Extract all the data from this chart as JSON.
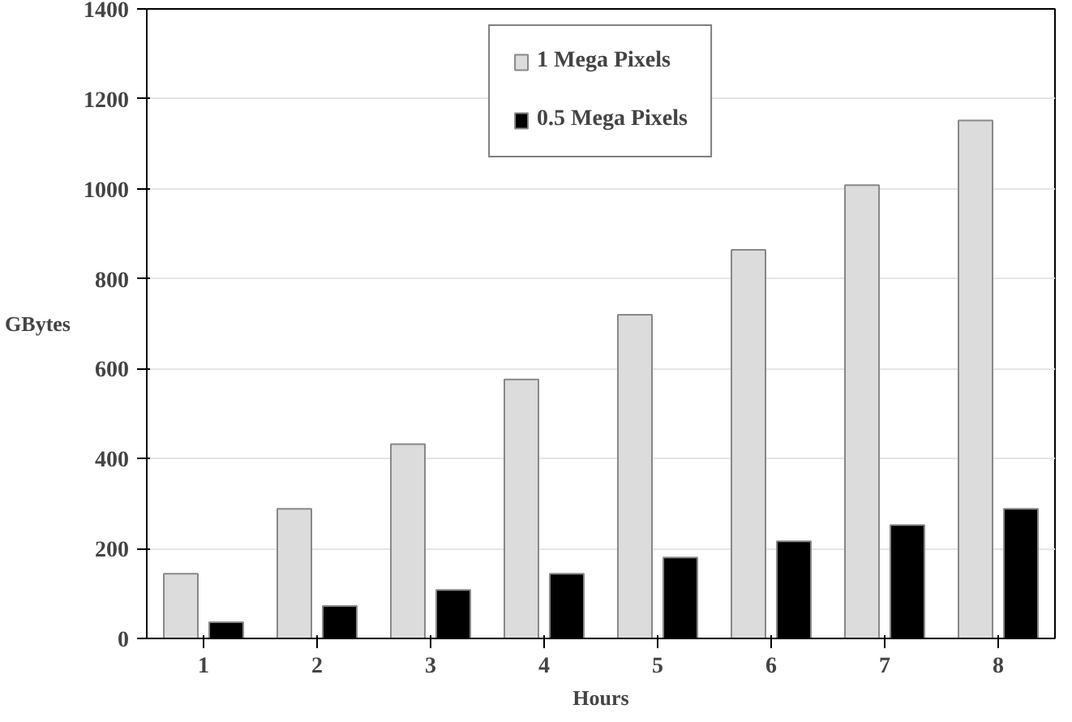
{
  "chart_data": {
    "type": "bar",
    "xlabel": "Hours",
    "ylabel": "GBytes",
    "categories": [
      "1",
      "2",
      "3",
      "4",
      "5",
      "6",
      "7",
      "8"
    ],
    "series": [
      {
        "name": "1 Mega Pixels",
        "color": "#dcdcdc",
        "values": [
          144,
          288,
          432,
          576,
          720,
          864,
          1008,
          1152
        ]
      },
      {
        "name": "0.5 Mega Pixels",
        "color": "#000000",
        "values": [
          36,
          72,
          108,
          144,
          180,
          216,
          252,
          288
        ]
      }
    ],
    "ylim": [
      0,
      1400
    ],
    "yticks": [
      0,
      200,
      400,
      600,
      800,
      1000,
      1200,
      1400
    ],
    "grid": "y",
    "legend": "top"
  }
}
